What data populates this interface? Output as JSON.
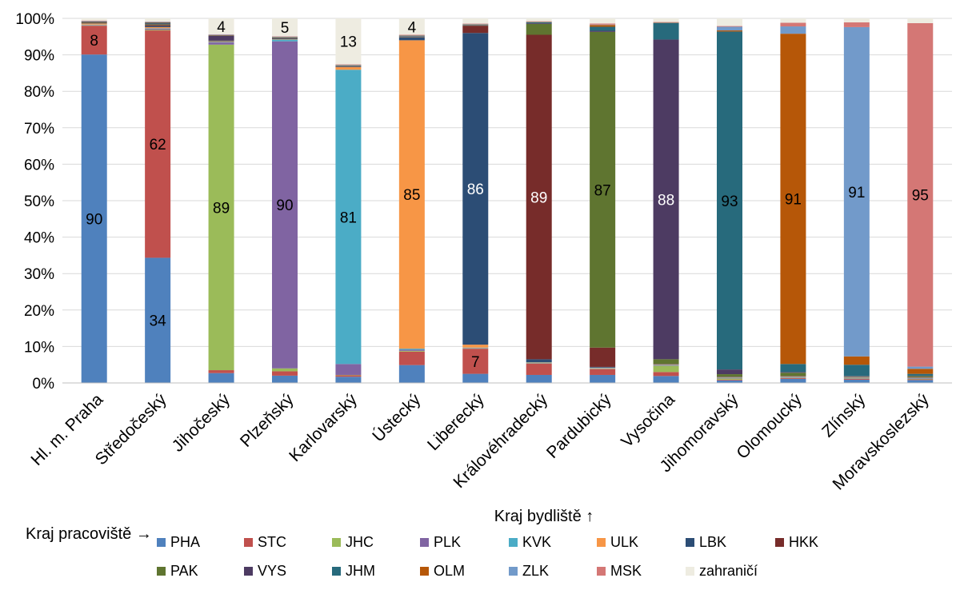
{
  "chart_data": {
    "type": "bar",
    "stacked": true,
    "percent_stacked": true,
    "title": "",
    "xlabel": "Kraj bydliště ↑",
    "ylabel": "",
    "ylim": [
      0,
      100
    ],
    "yticks": [
      "0%",
      "10%",
      "20%",
      "30%",
      "40%",
      "50%",
      "60%",
      "70%",
      "80%",
      "90%",
      "100%"
    ],
    "legend_title": "Kraj pracoviště →",
    "legend_position": "bottom",
    "categories": [
      "Hl. m. Praha",
      "Středočeský",
      "Jihočeský",
      "Plzeňský",
      "Karlovarský",
      "Ústecký",
      "Liberecký",
      "Královéhradecký",
      "Pardubický",
      "Vysočina",
      "Jihomoravský",
      "Olomoucký",
      "Zlínský",
      "Moravskoslezský"
    ],
    "series": [
      {
        "name": "PHA",
        "color": "#4f81bd",
        "values": [
          90,
          34.3,
          2.7,
          2.0,
          1.7,
          4.9,
          2.5,
          2.2,
          2.2,
          1.9,
          0.7,
          1.1,
          0.9,
          0.8
        ]
      },
      {
        "name": "STC",
        "color": "#c0504d",
        "values": [
          7.9,
          62.3,
          0.8,
          1.2,
          0.4,
          3.7,
          6.9,
          3.1,
          1.6,
          1.1,
          0.2,
          0.2,
          0.2,
          0.2
        ]
      },
      {
        "name": "JHC",
        "color": "#9bbb59",
        "values": [
          0.1,
          0.2,
          89.3,
          0.8,
          0.1,
          0.2,
          0.1,
          0.1,
          0.1,
          1.7,
          0.3,
          0.1,
          0.1,
          0.1
        ]
      },
      {
        "name": "PLK",
        "color": "#8064a2",
        "values": [
          0.1,
          0.3,
          0.6,
          89.9,
          3.0,
          0.3,
          0.1,
          0.1,
          0.1,
          0.1,
          0.1,
          0.1,
          0.1,
          0.1
        ]
      },
      {
        "name": "KVK",
        "color": "#4bacc6",
        "values": [
          0.1,
          0.1,
          0.1,
          0.5,
          80.8,
          0.3,
          0.1,
          0.1,
          0.1,
          0.1,
          0.1,
          0.1,
          0.1,
          0.1
        ]
      },
      {
        "name": "ULK",
        "color": "#f79646",
        "values": [
          0.3,
          0.3,
          0.1,
          0.1,
          0.7,
          84.6,
          0.8,
          0.1,
          0.1,
          0.1,
          0.1,
          0.1,
          0.1,
          0.1
        ]
      },
      {
        "name": "LBK",
        "color": "#2c4d75",
        "values": [
          0.1,
          0.3,
          0.1,
          0.1,
          0.1,
          0.8,
          85.5,
          0.8,
          0.2,
          0.1,
          0.1,
          0.1,
          0.1,
          0.1
        ]
      },
      {
        "name": "HKK",
        "color": "#772c2a",
        "values": [
          0.1,
          0.3,
          0.1,
          0.1,
          0.1,
          0.1,
          2.0,
          89.1,
          5.3,
          0.1,
          0.1,
          0.1,
          0.1,
          0.1
        ]
      },
      {
        "name": "PAK",
        "color": "#5f7530",
        "values": [
          0.1,
          0.2,
          0.1,
          0.1,
          0.1,
          0.1,
          0.1,
          3.0,
          86.6,
          1.3,
          0.7,
          0.9,
          0.1,
          0.3
        ]
      },
      {
        "name": "VYS",
        "color": "#4d3b62",
        "values": [
          0.1,
          0.2,
          1.3,
          0.1,
          0.1,
          0.1,
          0.1,
          0.2,
          0.3,
          87.7,
          1.3,
          0.2,
          0.1,
          0.1
        ]
      },
      {
        "name": "JHM",
        "color": "#276a7c",
        "values": [
          0.1,
          0.2,
          0.1,
          0.1,
          0.1,
          0.1,
          0.1,
          0.2,
          1.1,
          4.5,
          92.7,
          2.2,
          3.1,
          0.5
        ]
      },
      {
        "name": "OLM",
        "color": "#b65708",
        "values": [
          0.1,
          0.1,
          0.1,
          0.1,
          0.1,
          0.1,
          0.1,
          0.1,
          0.5,
          0.1,
          0.3,
          90.6,
          2.3,
          1.4
        ]
      },
      {
        "name": "ZLK",
        "color": "#729aca",
        "values": [
          0.1,
          0.1,
          0.1,
          0.1,
          0.1,
          0.1,
          0.1,
          0.1,
          0.1,
          0.1,
          1.0,
          2.0,
          90.5,
          0.6
        ]
      },
      {
        "name": "MSK",
        "color": "#d47775",
        "values": [
          0.1,
          0.1,
          0.1,
          0.1,
          0.1,
          0.1,
          0.1,
          0.1,
          0.3,
          0.1,
          0.2,
          1.0,
          1.3,
          94.7
        ]
      },
      {
        "name": "zahraničí",
        "color": "#eeece1",
        "values": [
          0.6,
          0.9,
          4.4,
          4.9,
          12.6,
          4.5,
          1.4,
          0.8,
          1.4,
          1.0,
          2.1,
          1.2,
          1.1,
          1.3
        ]
      }
    ],
    "data_labels": [
      {
        "category": "Hl. m. Praha",
        "series": "PHA",
        "text": "90"
      },
      {
        "category": "Hl. m. Praha",
        "series": "STC",
        "text": "8"
      },
      {
        "category": "Středočeský",
        "series": "PHA",
        "text": "34"
      },
      {
        "category": "Středočeský",
        "series": "STC",
        "text": "62"
      },
      {
        "category": "Jihočeský",
        "series": "JHC",
        "text": "89"
      },
      {
        "category": "Jihočeský",
        "series": "zahraničí",
        "text": "4"
      },
      {
        "category": "Plzeňský",
        "series": "PLK",
        "text": "90"
      },
      {
        "category": "Plzeňský",
        "series": "zahraničí",
        "text": "5"
      },
      {
        "category": "Karlovarský",
        "series": "KVK",
        "text": "81"
      },
      {
        "category": "Karlovarský",
        "series": "zahraničí",
        "text": "13"
      },
      {
        "category": "Ústecký",
        "series": "ULK",
        "text": "85"
      },
      {
        "category": "Ústecký",
        "series": "zahraničí",
        "text": "4"
      },
      {
        "category": "Liberecký",
        "series": "STC",
        "text": "7"
      },
      {
        "category": "Liberecký",
        "series": "LBK",
        "text": "86",
        "light": true
      },
      {
        "category": "Královéhradecký",
        "series": "HKK",
        "text": "89",
        "light": true
      },
      {
        "category": "Pardubický",
        "series": "PAK",
        "text": "87"
      },
      {
        "category": "Vysočina",
        "series": "VYS",
        "text": "88",
        "light": true
      },
      {
        "category": "Jihomoravský",
        "series": "JHM",
        "text": "93"
      },
      {
        "category": "Olomoucký",
        "series": "OLM",
        "text": "91"
      },
      {
        "category": "Zlínský",
        "series": "ZLK",
        "text": "91"
      },
      {
        "category": "Moravskoslezský",
        "series": "MSK",
        "text": "95"
      }
    ]
  }
}
